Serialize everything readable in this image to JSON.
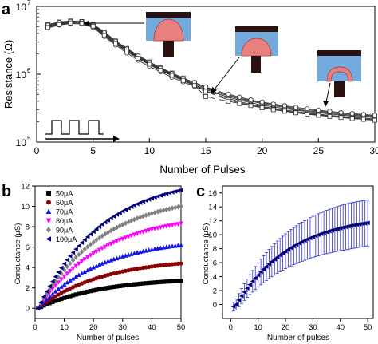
{
  "panel_letters": {
    "a": "a",
    "b": "b",
    "c": "c"
  },
  "chart_data": [
    {
      "panel": "a",
      "type": "line",
      "xlabel": "Number of Pulses",
      "ylabel": "Resistance (Ω)",
      "xlim": [
        0,
        30
      ],
      "ylim": [
        100000,
        10000000
      ],
      "yscale": "log",
      "x_ticks": [
        "0",
        "5",
        "10",
        "15",
        "20",
        "25",
        "30"
      ],
      "y_ticks": [
        {
          "base": "10",
          "exp": "5"
        },
        {
          "base": "10",
          "exp": "6"
        },
        {
          "base": "10",
          "exp": "7"
        }
      ],
      "x": [
        1,
        2,
        3,
        4,
        5,
        6,
        7,
        8,
        9,
        10,
        11,
        12,
        13,
        14,
        15,
        16,
        17,
        18,
        19,
        20,
        21,
        22,
        23,
        24,
        25,
        26,
        27,
        28,
        29,
        30
      ],
      "series": [
        {
          "values": [
            5200000,
            5700000,
            6000000,
            5900000,
            5300000,
            4000000,
            3000000,
            2300000,
            1800000,
            1450000,
            1200000,
            1000000,
            850000,
            720000,
            620000,
            540000,
            480000,
            430000,
            400000,
            370000,
            345000,
            325000,
            305000,
            290000,
            280000,
            268000,
            258000,
            250000,
            243000,
            236000
          ]
        },
        {
          "values": [
            5000000,
            5500000,
            5800000,
            5600000,
            5000000,
            3700000,
            2800000,
            2150000,
            1700000,
            1380000,
            1130000,
            950000,
            800000,
            690000,
            600000,
            520000,
            460000,
            415000,
            380000,
            350000,
            330000,
            312000,
            296000,
            282000,
            270000,
            260000,
            250000,
            242000,
            236000,
            230000
          ]
        },
        {
          "values": [
            5400000,
            5900000,
            6100000,
            6000000,
            5500000,
            4200000,
            3100000,
            2400000,
            1900000,
            1520000,
            1250000,
            1040000,
            880000,
            750000,
            640000,
            555000,
            495000,
            445000,
            410000,
            380000,
            355000,
            335000,
            315000,
            300000,
            288000,
            276000,
            266000,
            258000,
            250000,
            243000
          ]
        },
        {
          "values": [
            4800000,
            5300000,
            5600000,
            5500000,
            4900000,
            3600000,
            2700000,
            2050000,
            1600000,
            1300000,
            1080000,
            900000,
            770000,
            660000,
            570000,
            495000,
            440000,
            395000,
            360000,
            335000,
            315000,
            298000,
            282000,
            270000,
            258000,
            248000,
            240000,
            232000,
            226000,
            220000
          ]
        },
        {
          "values": [
            5100000,
            5600000,
            5900000,
            5800000,
            5200000,
            3900000,
            2900000,
            2250000,
            1750000,
            1420000,
            1170000,
            980000,
            830000,
            700000,
            560000,
            480000,
            420000,
            380000,
            350000,
            325000,
            305000,
            290000,
            275000,
            262000,
            252000,
            242000,
            234000,
            226000,
            220000,
            214000
          ]
        },
        {
          "values": [
            5300000,
            5800000,
            6000000,
            5950000,
            5400000,
            4100000,
            3050000,
            2350000,
            1850000,
            1480000,
            1220000,
            1020000,
            860000,
            760000,
            650000,
            570000,
            510000,
            460000,
            420000,
            390000,
            365000,
            345000,
            325000,
            310000,
            296000,
            284000,
            273000,
            264000,
            256000,
            249000
          ]
        },
        {
          "values": [
            4900000,
            5400000,
            5700000,
            5650000,
            5100000,
            3800000,
            2850000,
            2200000,
            1720000,
            1400000,
            1150000,
            960000,
            810000,
            680000,
            470000,
            430000,
            400000,
            370000,
            345000,
            320000,
            300000,
            285000,
            270000,
            258000,
            248000,
            238000,
            230000,
            222000,
            216000,
            210000
          ]
        }
      ]
    },
    {
      "panel": "b",
      "type": "scatter",
      "xlabel": "Number of pulses",
      "ylabel": "Conductance (μS)",
      "xlim": [
        0,
        50
      ],
      "ylim": [
        -1,
        12
      ],
      "x_ticks": [
        "0",
        "10",
        "20",
        "30",
        "40",
        "50"
      ],
      "y_ticks": [
        "0",
        "2",
        "4",
        "6",
        "8",
        "10",
        "12"
      ],
      "legend_position": "top-left",
      "series": [
        {
          "name": "50μA",
          "color": "#000000",
          "marker": "square",
          "max": 2.7
        },
        {
          "name": "60μA",
          "color": "#8b0000",
          "marker": "circle",
          "max": 4.4
        },
        {
          "name": "70μA",
          "color": "#1515e6",
          "marker": "triangle-up",
          "max": 6.2
        },
        {
          "name": "80μA",
          "color": "#ff00ff",
          "marker": "triangle-down",
          "max": 8.3
        },
        {
          "name": "90μA",
          "color": "#808080",
          "marker": "diamond",
          "max": 10.0
        },
        {
          "name": "100μA",
          "color": "#00007a",
          "marker": "triangle-left",
          "max": 11.6
        }
      ]
    },
    {
      "panel": "c",
      "type": "scatter",
      "xlabel": "Number of pulses",
      "ylabel": "Conductance (μS)",
      "xlim": [
        -3,
        52
      ],
      "ylim": [
        -2,
        17
      ],
      "x_ticks": [
        "0",
        "10",
        "20",
        "30",
        "40",
        "50"
      ],
      "y_ticks": [
        "0",
        "2",
        "4",
        "6",
        "8",
        "10",
        "12",
        "14",
        "16"
      ],
      "color": "#00007a",
      "max": 11.7,
      "error_max": 3.3
    }
  ]
}
